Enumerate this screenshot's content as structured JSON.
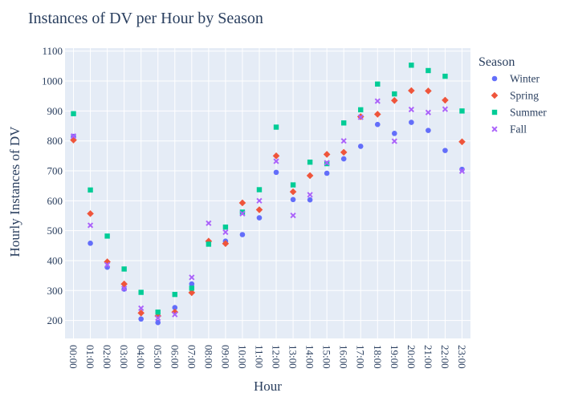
{
  "chart_data": {
    "type": "scatter",
    "title": "Instances of DV per Hour by Season",
    "xlabel": "Hour",
    "ylabel": "Hourly Instances of DV",
    "x_categories": [
      "00:00",
      "01:00",
      "02:00",
      "03:00",
      "04:00",
      "05:00",
      "06:00",
      "07:00",
      "08:00",
      "09:00",
      "10:00",
      "11:00",
      "12:00",
      "13:00",
      "14:00",
      "15:00",
      "16:00",
      "17:00",
      "18:00",
      "19:00",
      "20:00",
      "21:00",
      "22:00",
      "23:00"
    ],
    "yticks": [
      200,
      300,
      400,
      500,
      600,
      700,
      800,
      900,
      1000,
      1100
    ],
    "ylim": [
      140,
      1110
    ],
    "grid": true,
    "legend": {
      "title": "Season",
      "position": "right"
    },
    "series": [
      {
        "name": "Winter",
        "symbol": "circle",
        "color": "#636efa",
        "values": [
          815,
          458,
          378,
          305,
          205,
          193,
          243,
          322,
          463,
          465,
          487,
          543,
          695,
          604,
          603,
          692,
          740,
          782,
          855,
          825,
          862,
          835,
          768,
          705
        ]
      },
      {
        "name": "Spring",
        "symbol": "diamond",
        "color": "#ef553b",
        "values": [
          803,
          557,
          396,
          322,
          225,
          215,
          228,
          293,
          465,
          457,
          593,
          570,
          750,
          630,
          684,
          755,
          762,
          881,
          889,
          935,
          968,
          967,
          936,
          797
        ]
      },
      {
        "name": "Summer",
        "symbol": "square",
        "color": "#00cc96",
        "values": [
          891,
          636,
          482,
          372,
          294,
          228,
          287,
          308,
          455,
          512,
          562,
          637,
          846,
          653,
          729,
          724,
          860,
          904,
          990,
          957,
          1053,
          1035,
          1016,
          900
        ]
      },
      {
        "name": "Fall",
        "symbol": "x",
        "color": "#ab63fa",
        "values": [
          816,
          518,
          386,
          307,
          241,
          208,
          220,
          344,
          525,
          495,
          557,
          600,
          732,
          551,
          620,
          727,
          800,
          879,
          933,
          799,
          905,
          895,
          906,
          699
        ]
      }
    ]
  },
  "colors": {
    "plot_background": "#e5ecf6",
    "grid": "#ffffff",
    "text": "#2a3f5f"
  }
}
